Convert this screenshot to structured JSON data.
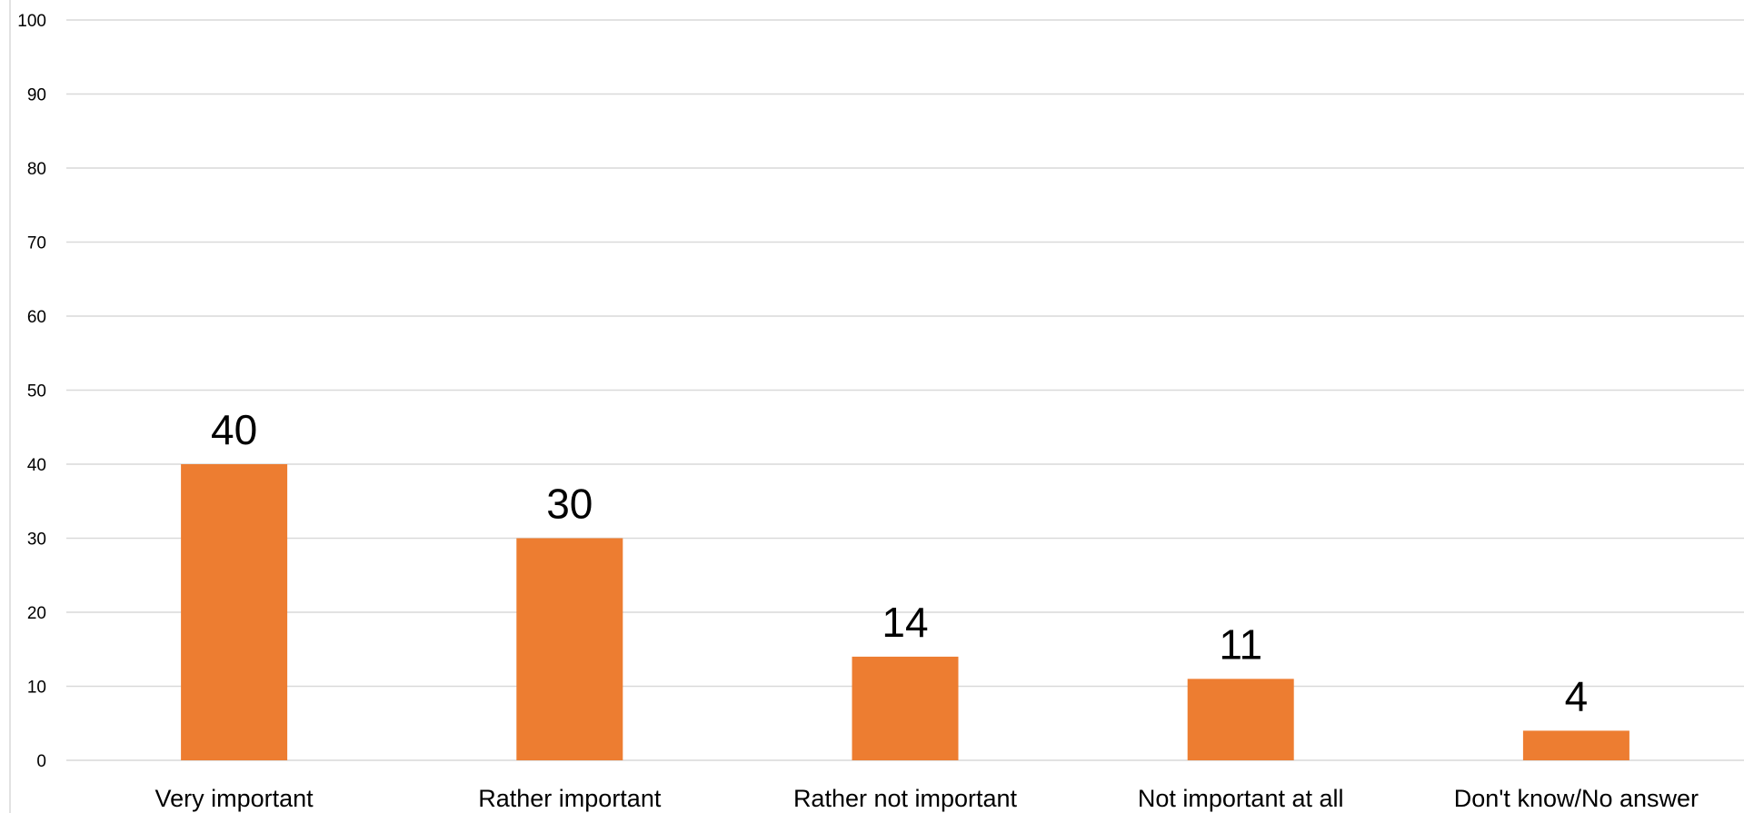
{
  "chart_data": {
    "type": "bar",
    "categories": [
      "Very important",
      "Rather important",
      "Rather not important",
      "Not important at all",
      "Don't know/No answer"
    ],
    "values": [
      40,
      30,
      14,
      11,
      4
    ],
    "title": "",
    "xlabel": "",
    "ylabel": "",
    "ylim": [
      0,
      100
    ],
    "yticks": [
      0,
      10,
      20,
      30,
      40,
      50,
      60,
      70,
      80,
      90,
      100
    ],
    "grid": true,
    "data_labels": true,
    "bar_color": "#ed7d31",
    "gridline_color": "#d9d9d9"
  }
}
